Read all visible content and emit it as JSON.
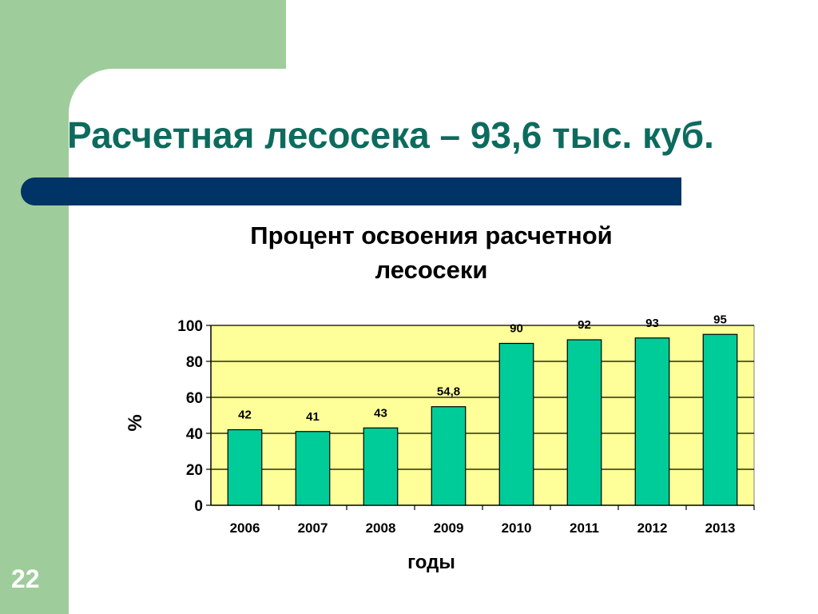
{
  "slide": {
    "title": "Расчетная лесосека – 93,6 тыс. куб.",
    "page_number": "22"
  },
  "colors": {
    "frame_green": "#9fcc9b",
    "accent_bar": "#003366",
    "title_text": "#0d6b5e",
    "plot_background": "#ffff99",
    "bar_fill": "#00cc99"
  },
  "chart_data": {
    "type": "bar",
    "title_lines": [
      "Процент освоения расчетной",
      "лесосеки"
    ],
    "xlabel": "годы",
    "ylabel": "%",
    "categories": [
      "2006",
      "2007",
      "2008",
      "2009",
      "2010",
      "2011",
      "2012",
      "2013"
    ],
    "values": [
      42,
      41,
      43,
      54.8,
      90,
      92,
      93,
      95
    ],
    "data_labels": [
      "42",
      "41",
      "43",
      "54,8",
      "90",
      "92",
      "93",
      "95"
    ],
    "yticks": [
      0,
      20,
      40,
      60,
      80,
      100
    ],
    "ylim": [
      0,
      100
    ],
    "grid": true,
    "legend": false
  }
}
